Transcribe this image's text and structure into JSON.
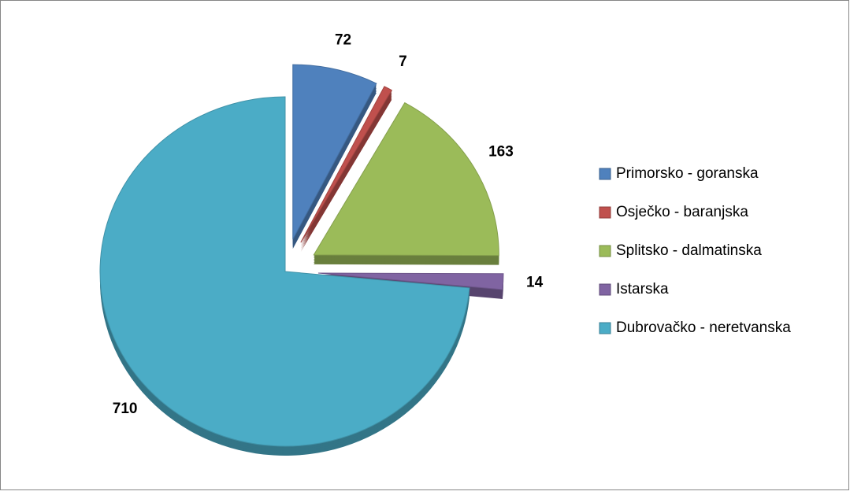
{
  "chart_data": {
    "type": "pie",
    "categories": [
      "Primorsko - goranska",
      "Osječko - baranjska",
      "Splitsko - dalmatinska",
      "Istarska",
      "Dubrovačko - neretvanska"
    ],
    "values": [
      72,
      7,
      163,
      14,
      710
    ],
    "colors": [
      "#4f81bd",
      "#c0504d",
      "#9bbb59",
      "#8064a2",
      "#4bacc6"
    ],
    "exploded": [
      true,
      true,
      true,
      true,
      false
    ],
    "legend": "right"
  }
}
